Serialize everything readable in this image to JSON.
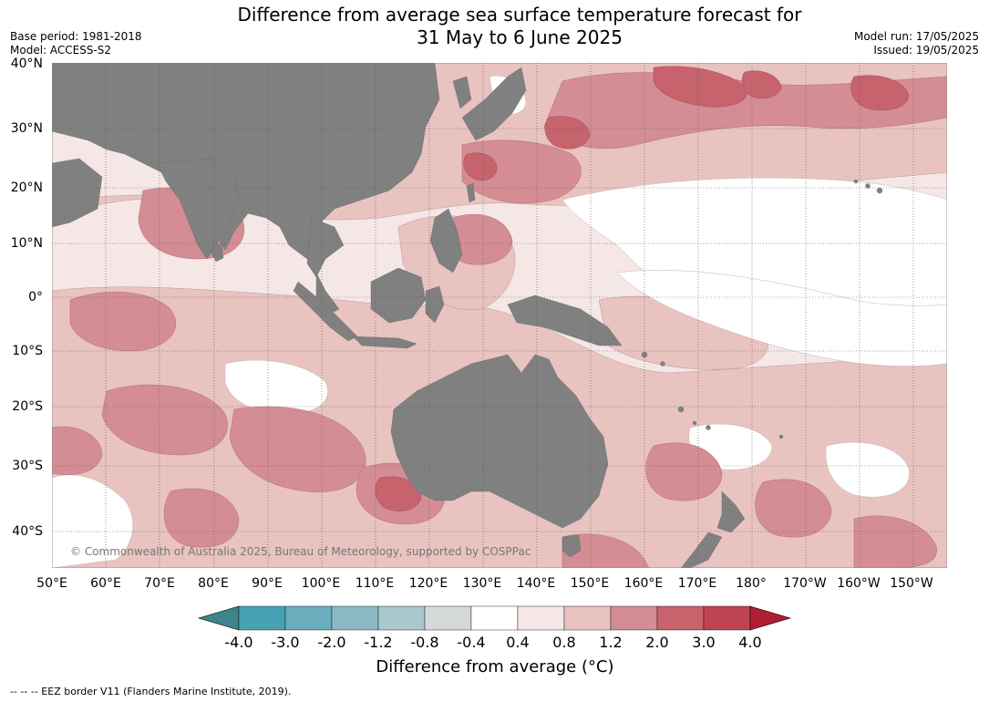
{
  "title_line1": "Difference from average sea surface temperature forecast for",
  "title_line2": "31 May to 6 June 2025",
  "meta_left": {
    "base_period": "Base period: 1981-2018",
    "model": "Model: ACCESS-S2"
  },
  "meta_right": {
    "model_run": "Model run: 17/05/2025",
    "issued": "Issued: 19/05/2025"
  },
  "lat_labels": [
    "40°N",
    "30°N",
    "20°N",
    "10°N",
    "0°",
    "10°S",
    "20°S",
    "30°S",
    "40°S"
  ],
  "lon_labels": [
    "50°E",
    "60°E",
    "70°E",
    "80°E",
    "90°E",
    "100°E",
    "110°E",
    "120°E",
    "130°E",
    "140°E",
    "150°E",
    "160°E",
    "170°E",
    "180°",
    "170°W",
    "160°W",
    "150°W"
  ],
  "copyright": "© Commonwealth of Australia 2025, Bureau of Meteorology, supported by COSPPac",
  "colorbar": {
    "ticks": [
      "-4.0",
      "-3.0",
      "-2.0",
      "-1.2",
      "-0.8",
      "-0.4",
      "0.4",
      "0.8",
      "1.2",
      "2.0",
      "3.0",
      "4.0"
    ],
    "colors": [
      "#3e848c",
      "#48a1b3",
      "#6aaebd",
      "#8bbac5",
      "#a9c8cc",
      "#d4d8d9",
      "#ffffff",
      "#f4e7e6",
      "#e8c3c0",
      "#d48d94",
      "#c7636c",
      "#be4451",
      "#ae1f34"
    ],
    "label": "Difference from average (°C)"
  },
  "footer": "--  --  -- EEZ border V11 (Flanders Marine Institute, 2019).",
  "colors": {
    "land": "#808080",
    "grid": "#555555"
  }
}
